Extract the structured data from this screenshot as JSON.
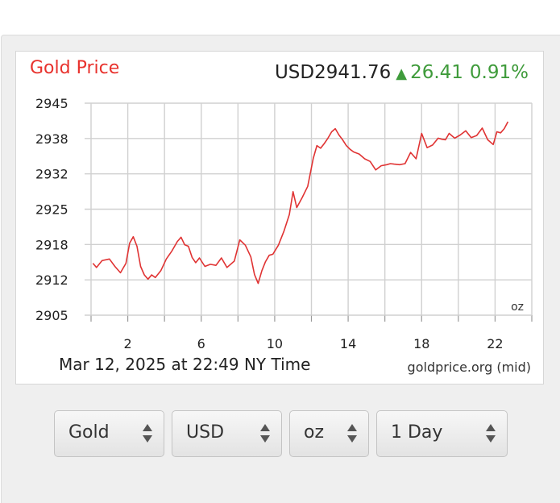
{
  "header": {
    "title": "Gold Price",
    "price": "USD2941.76",
    "change": "26.41",
    "change_pct": "0.91%"
  },
  "footer": {
    "timestamp": "Mar 12, 2025 at 22:49 NY Time",
    "source": "goldprice.org (mid)"
  },
  "colors": {
    "title": "#e8322d",
    "line": "#e03333",
    "positive": "#3f9b3b",
    "grid": "#d0d0d0"
  },
  "controls": {
    "metal": "Gold",
    "currency": "USD",
    "unit": "oz",
    "range": "1 Day"
  },
  "chart_data": {
    "type": "line",
    "unit_label": "oz",
    "x_ticks": [
      2,
      6,
      10,
      14,
      18,
      22
    ],
    "y_ticks": [
      "2945",
      "2938",
      "2932",
      "2925",
      "2918",
      "2912",
      "2905"
    ],
    "xlim": [
      0,
      24
    ],
    "ylim": [
      2905,
      2945
    ],
    "grid": true,
    "series": [
      {
        "x": [
          0.1,
          0.3,
          0.6,
          1.0,
          1.3,
          1.6,
          1.9,
          2.1,
          2.3,
          2.5,
          2.7,
          2.9,
          3.1,
          3.3,
          3.5,
          3.8,
          4.1,
          4.4,
          4.7,
          4.9,
          5.1,
          5.3,
          5.5,
          5.7,
          5.9,
          6.2,
          6.5,
          6.8,
          7.1,
          7.4,
          7.8,
          8.1,
          8.4,
          8.7,
          8.9,
          9.1,
          9.3,
          9.5,
          9.7,
          9.9,
          10.2,
          10.5,
          10.8,
          11.0,
          11.2,
          11.5,
          11.8,
          12.1,
          12.3,
          12.5,
          12.7,
          12.9,
          13.1,
          13.3,
          13.5,
          13.7,
          13.9,
          14.1,
          14.3,
          14.6,
          14.9,
          15.2,
          15.5,
          15.8,
          16.1,
          16.3,
          16.5,
          16.8,
          17.1,
          17.4,
          17.7,
          18.0,
          18.3,
          18.6,
          18.9,
          19.1,
          19.3,
          19.5,
          19.8,
          20.1,
          20.4,
          20.7,
          21.0,
          21.3,
          21.6,
          21.9,
          22.1,
          22.3,
          22.5,
          22.7
        ],
        "values": [
          2914.8,
          2914.0,
          2915.3,
          2915.6,
          2914.2,
          2913.0,
          2914.8,
          2918.6,
          2919.8,
          2918.0,
          2914.2,
          2912.6,
          2911.8,
          2912.6,
          2912.1,
          2913.4,
          2915.6,
          2917.1,
          2918.9,
          2919.7,
          2918.3,
          2918.0,
          2915.9,
          2914.9,
          2915.8,
          2914.2,
          2914.6,
          2914.4,
          2915.8,
          2914.0,
          2915.2,
          2919.2,
          2918.2,
          2916.0,
          2912.7,
          2911.0,
          2913.4,
          2915.1,
          2916.3,
          2916.5,
          2918.2,
          2920.8,
          2924.0,
          2928.3,
          2925.3,
          2927.2,
          2929.3,
          2934.6,
          2937.0,
          2936.5,
          2937.4,
          2938.4,
          2939.6,
          2940.2,
          2939.0,
          2938.1,
          2937.0,
          2936.3,
          2935.8,
          2935.4,
          2934.5,
          2934.0,
          2932.4,
          2933.2,
          2933.4,
          2933.6,
          2933.5,
          2933.4,
          2933.6,
          2935.7,
          2934.5,
          2939.3,
          2936.6,
          2937.1,
          2938.4,
          2938.2,
          2938.1,
          2939.3,
          2938.4,
          2939.0,
          2939.8,
          2938.5,
          2938.9,
          2940.3,
          2938.1,
          2937.2,
          2939.6,
          2939.4,
          2940.2,
          2941.5
        ]
      }
    ]
  }
}
